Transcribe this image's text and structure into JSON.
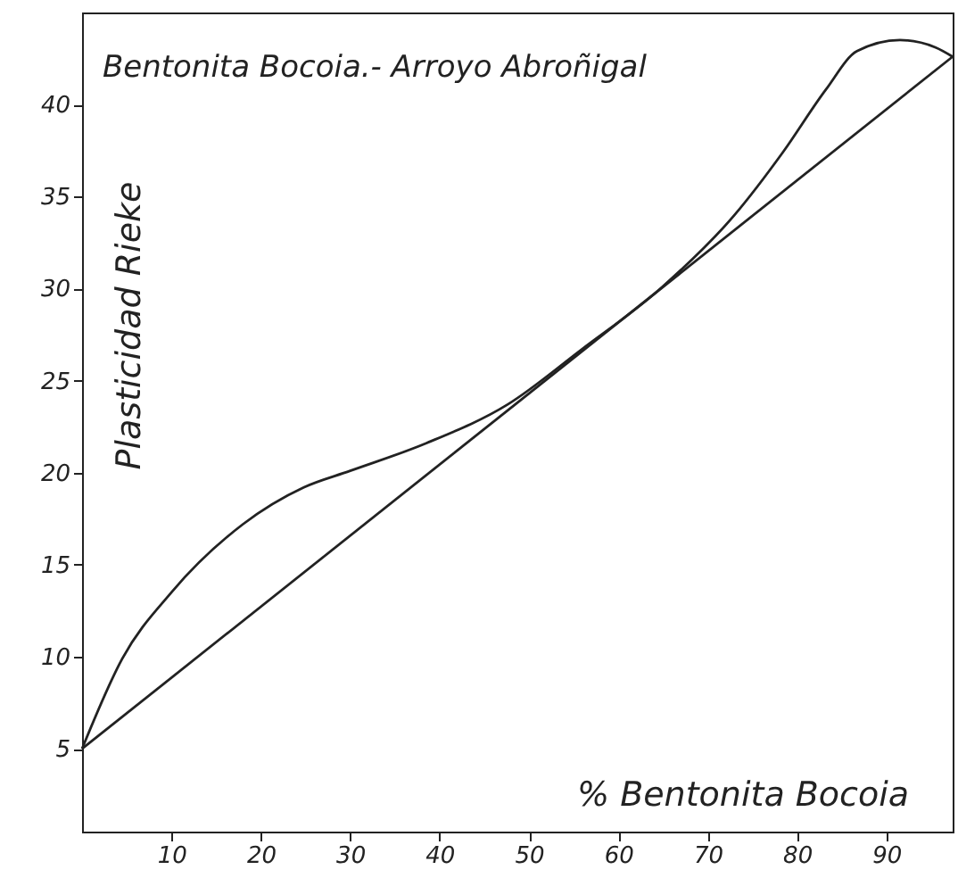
{
  "chart_data": {
    "type": "line",
    "title": "Bentonita Bocoia.- Arroyo Abroñigal",
    "xlabel": "% Bentonita Bocoia",
    "ylabel": "Plasticidad Rieke",
    "xlim": [
      0,
      97.4
    ],
    "ylim": [
      0.5,
      45
    ],
    "xticks": [
      10,
      20,
      30,
      40,
      50,
      60,
      70,
      80,
      90
    ],
    "yticks": [
      5,
      10,
      15,
      20,
      25,
      30,
      35,
      40
    ],
    "grid": false,
    "legend": false,
    "marker": "none",
    "line_style": "solid",
    "series": [
      {
        "color": "#222222",
        "x": [
          0,
          4.5,
          10,
          18,
          24.8,
          30,
          38.5,
          47.6,
          55.9,
          64.7,
          73,
          78.4,
          83.2,
          86.7,
          91.5,
          95.5,
          97.4
        ],
        "values": [
          5,
          9.9,
          13.5,
          17.2,
          19.2,
          20.1,
          21.6,
          23.7,
          26.7,
          30,
          34,
          37.4,
          40.8,
          42.9,
          43.5,
          43.1,
          42.6
        ]
      },
      {
        "color": "#222222",
        "x": [
          0,
          97.4
        ],
        "values": [
          5,
          42.6
        ]
      }
    ]
  }
}
